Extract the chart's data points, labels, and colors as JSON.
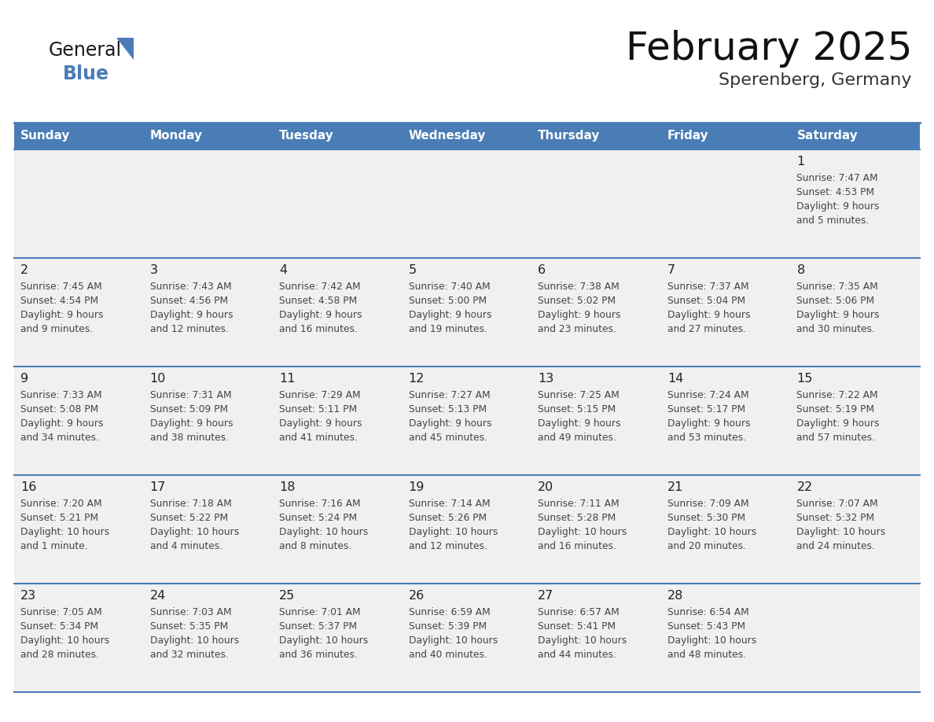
{
  "title": "February 2025",
  "subtitle": "Sperenberg, Germany",
  "header_bg": "#4A7DB5",
  "header_text": "#FFFFFF",
  "days_of_week": [
    "Sunday",
    "Monday",
    "Tuesday",
    "Wednesday",
    "Thursday",
    "Friday",
    "Saturday"
  ],
  "row_bg": "#F0F0F0",
  "cell_text_color": "#444444",
  "day_num_color": "#222222",
  "line_color": "#4A7DB5",
  "calendar": [
    [
      {
        "day": "",
        "info": ""
      },
      {
        "day": "",
        "info": ""
      },
      {
        "day": "",
        "info": ""
      },
      {
        "day": "",
        "info": ""
      },
      {
        "day": "",
        "info": ""
      },
      {
        "day": "",
        "info": ""
      },
      {
        "day": "1",
        "info": "Sunrise: 7:47 AM\nSunset: 4:53 PM\nDaylight: 9 hours\nand 5 minutes."
      }
    ],
    [
      {
        "day": "2",
        "info": "Sunrise: 7:45 AM\nSunset: 4:54 PM\nDaylight: 9 hours\nand 9 minutes."
      },
      {
        "day": "3",
        "info": "Sunrise: 7:43 AM\nSunset: 4:56 PM\nDaylight: 9 hours\nand 12 minutes."
      },
      {
        "day": "4",
        "info": "Sunrise: 7:42 AM\nSunset: 4:58 PM\nDaylight: 9 hours\nand 16 minutes."
      },
      {
        "day": "5",
        "info": "Sunrise: 7:40 AM\nSunset: 5:00 PM\nDaylight: 9 hours\nand 19 minutes."
      },
      {
        "day": "6",
        "info": "Sunrise: 7:38 AM\nSunset: 5:02 PM\nDaylight: 9 hours\nand 23 minutes."
      },
      {
        "day": "7",
        "info": "Sunrise: 7:37 AM\nSunset: 5:04 PM\nDaylight: 9 hours\nand 27 minutes."
      },
      {
        "day": "8",
        "info": "Sunrise: 7:35 AM\nSunset: 5:06 PM\nDaylight: 9 hours\nand 30 minutes."
      }
    ],
    [
      {
        "day": "9",
        "info": "Sunrise: 7:33 AM\nSunset: 5:08 PM\nDaylight: 9 hours\nand 34 minutes."
      },
      {
        "day": "10",
        "info": "Sunrise: 7:31 AM\nSunset: 5:09 PM\nDaylight: 9 hours\nand 38 minutes."
      },
      {
        "day": "11",
        "info": "Sunrise: 7:29 AM\nSunset: 5:11 PM\nDaylight: 9 hours\nand 41 minutes."
      },
      {
        "day": "12",
        "info": "Sunrise: 7:27 AM\nSunset: 5:13 PM\nDaylight: 9 hours\nand 45 minutes."
      },
      {
        "day": "13",
        "info": "Sunrise: 7:25 AM\nSunset: 5:15 PM\nDaylight: 9 hours\nand 49 minutes."
      },
      {
        "day": "14",
        "info": "Sunrise: 7:24 AM\nSunset: 5:17 PM\nDaylight: 9 hours\nand 53 minutes."
      },
      {
        "day": "15",
        "info": "Sunrise: 7:22 AM\nSunset: 5:19 PM\nDaylight: 9 hours\nand 57 minutes."
      }
    ],
    [
      {
        "day": "16",
        "info": "Sunrise: 7:20 AM\nSunset: 5:21 PM\nDaylight: 10 hours\nand 1 minute."
      },
      {
        "day": "17",
        "info": "Sunrise: 7:18 AM\nSunset: 5:22 PM\nDaylight: 10 hours\nand 4 minutes."
      },
      {
        "day": "18",
        "info": "Sunrise: 7:16 AM\nSunset: 5:24 PM\nDaylight: 10 hours\nand 8 minutes."
      },
      {
        "day": "19",
        "info": "Sunrise: 7:14 AM\nSunset: 5:26 PM\nDaylight: 10 hours\nand 12 minutes."
      },
      {
        "day": "20",
        "info": "Sunrise: 7:11 AM\nSunset: 5:28 PM\nDaylight: 10 hours\nand 16 minutes."
      },
      {
        "day": "21",
        "info": "Sunrise: 7:09 AM\nSunset: 5:30 PM\nDaylight: 10 hours\nand 20 minutes."
      },
      {
        "day": "22",
        "info": "Sunrise: 7:07 AM\nSunset: 5:32 PM\nDaylight: 10 hours\nand 24 minutes."
      }
    ],
    [
      {
        "day": "23",
        "info": "Sunrise: 7:05 AM\nSunset: 5:34 PM\nDaylight: 10 hours\nand 28 minutes."
      },
      {
        "day": "24",
        "info": "Sunrise: 7:03 AM\nSunset: 5:35 PM\nDaylight: 10 hours\nand 32 minutes."
      },
      {
        "day": "25",
        "info": "Sunrise: 7:01 AM\nSunset: 5:37 PM\nDaylight: 10 hours\nand 36 minutes."
      },
      {
        "day": "26",
        "info": "Sunrise: 6:59 AM\nSunset: 5:39 PM\nDaylight: 10 hours\nand 40 minutes."
      },
      {
        "day": "27",
        "info": "Sunrise: 6:57 AM\nSunset: 5:41 PM\nDaylight: 10 hours\nand 44 minutes."
      },
      {
        "day": "28",
        "info": "Sunrise: 6:54 AM\nSunset: 5:43 PM\nDaylight: 10 hours\nand 48 minutes."
      },
      {
        "day": "",
        "info": ""
      }
    ]
  ],
  "logo_color_general": "#1a1a1a",
  "logo_color_blue": "#4A7DB5",
  "logo_triangle_color": "#4A7DB5"
}
